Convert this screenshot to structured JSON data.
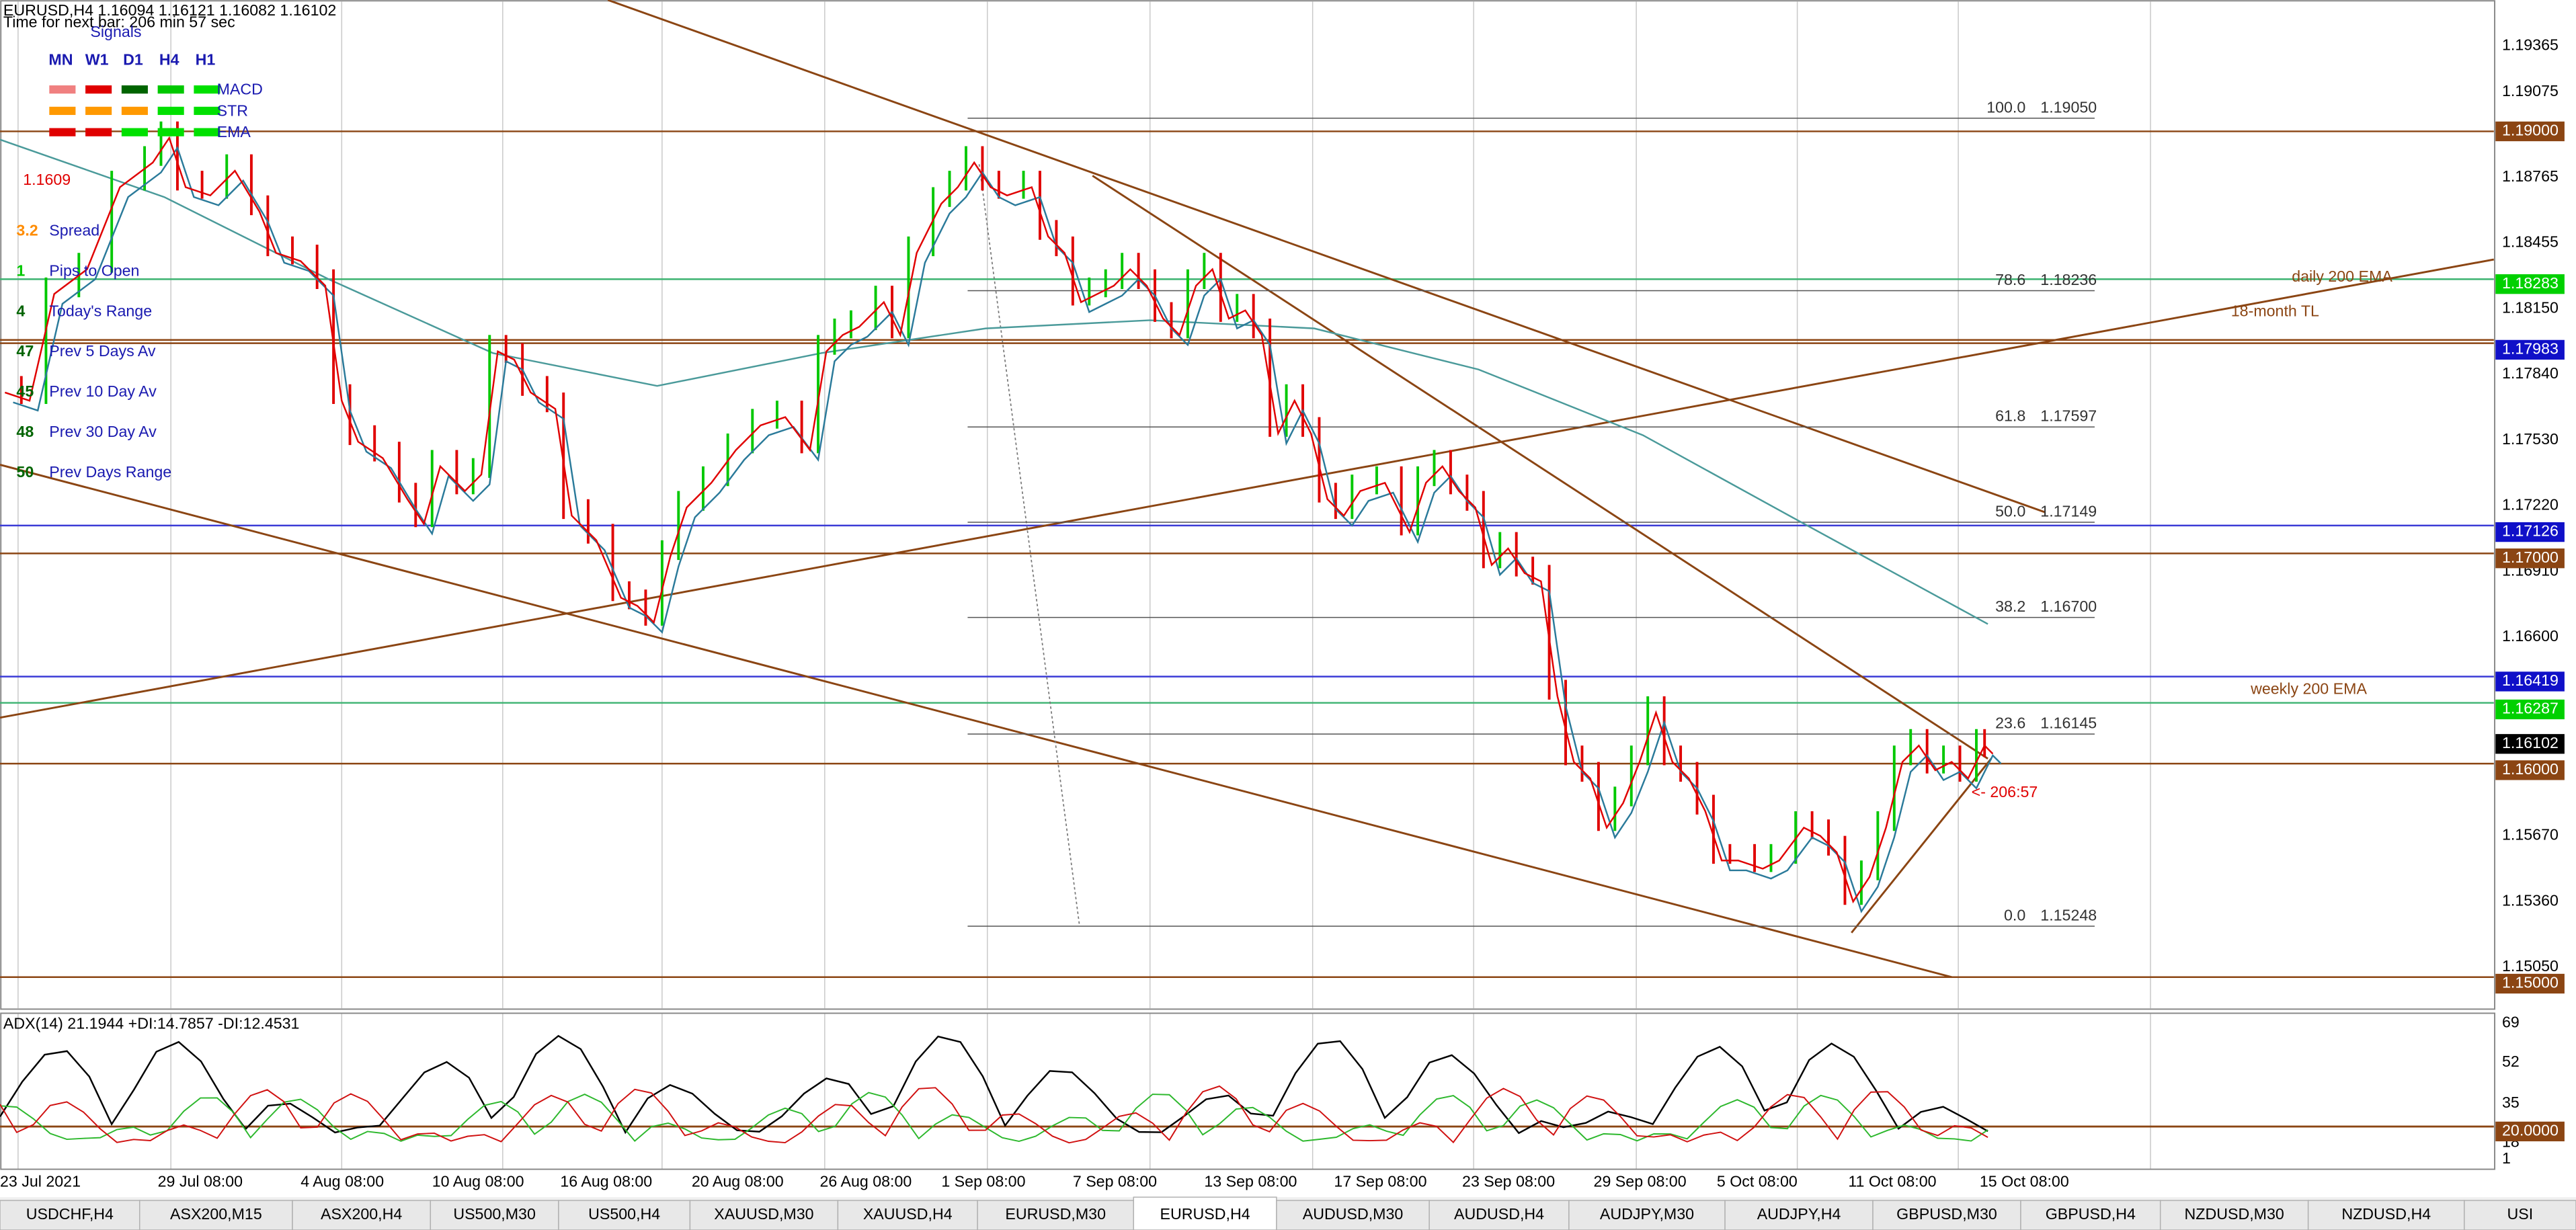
{
  "header": {
    "title": "EURUSD,H4  1.16094 1.16121 1.16082 1.16102",
    "timer": "Time for next bar: 206 min 57 sec"
  },
  "signals": {
    "title": "Signals",
    "timeframes": [
      "MN",
      "W1",
      "D1",
      "H4",
      "H1"
    ],
    "indicators": [
      "MACD",
      "STR",
      "EMA"
    ]
  },
  "info": {
    "price": "1.1609",
    "rows": [
      {
        "value": "3.2",
        "label": "Spread"
      },
      {
        "value": "1",
        "label": "Pips to Open"
      },
      {
        "value": "4",
        "label": "Today's Range"
      },
      {
        "value": "47",
        "label": "Prev 5 Days Av"
      },
      {
        "value": "45",
        "label": "Prev 10 Day Av"
      },
      {
        "value": "48",
        "label": "Prev 30 Day Av"
      },
      {
        "value": "50",
        "label": "Prev Days Range"
      }
    ]
  },
  "price_axis": [
    "1.19365",
    "1.19075",
    "1.18765",
    "1.18455",
    "1.18150",
    "1.17840",
    "1.17530",
    "1.17220",
    "1.16910",
    "1.16600",
    "1.15670",
    "1.15360",
    "1.15050"
  ],
  "price_levels": [
    "1.19000",
    "1.18283",
    "1.17983",
    "1.17126",
    "1.17000",
    "1.16419",
    "1.16287",
    "1.16102",
    "1.16000",
    "1.15000"
  ],
  "fibonacci": [
    {
      "level": "100.0",
      "price": "1.19050"
    },
    {
      "level": "78.6",
      "price": "1.18236"
    },
    {
      "level": "61.8",
      "price": "1.17597"
    },
    {
      "level": "50.0",
      "price": "1.17149"
    },
    {
      "level": "38.2",
      "price": "1.16700"
    },
    {
      "level": "23.6",
      "price": "1.16145"
    },
    {
      "level": "0.0",
      "price": "1.15248"
    }
  ],
  "annotations": {
    "daily_ema": "daily 200 EMA",
    "trend_line": "18-month TL",
    "weekly_ema": "weekly 200 EMA",
    "countdown": "<- 206:57"
  },
  "indicator": {
    "title": "ADX(14) 21.1944 +DI:14.7857 -DI:12.4531",
    "axis": [
      "69",
      "52",
      "35",
      "18",
      "1"
    ],
    "level": "20.0000"
  },
  "time_axis": [
    "23 Jul 2021",
    "29 Jul 08:00",
    "4 Aug 08:00",
    "10 Aug 08:00",
    "16 Aug 08:00",
    "20 Aug 08:00",
    "26 Aug 08:00",
    "1 Sep 08:00",
    "7 Sep 08:00",
    "13 Sep 08:00",
    "17 Sep 08:00",
    "23 Sep 08:00",
    "29 Sep 08:00",
    "5 Oct 08:00",
    "11 Oct 08:00",
    "15 Oct 08:00"
  ],
  "tabs": [
    "USDCHF,H4",
    "ASX200,M15",
    "ASX200,H4",
    "US500,M30",
    "US500,H4",
    "XAUUSD,M30",
    "XAUUSD,H4",
    "EURUSD,M30",
    "EURUSD,H4",
    "AUDUSD,M30",
    "AUDUSD,H4",
    "AUDJPY,M30",
    "AUDJPY,H4",
    "GBPUSD,M30",
    "GBPUSD,H4",
    "NZDUSD,M30",
    "NZDUSD,H4",
    "USI"
  ]
}
